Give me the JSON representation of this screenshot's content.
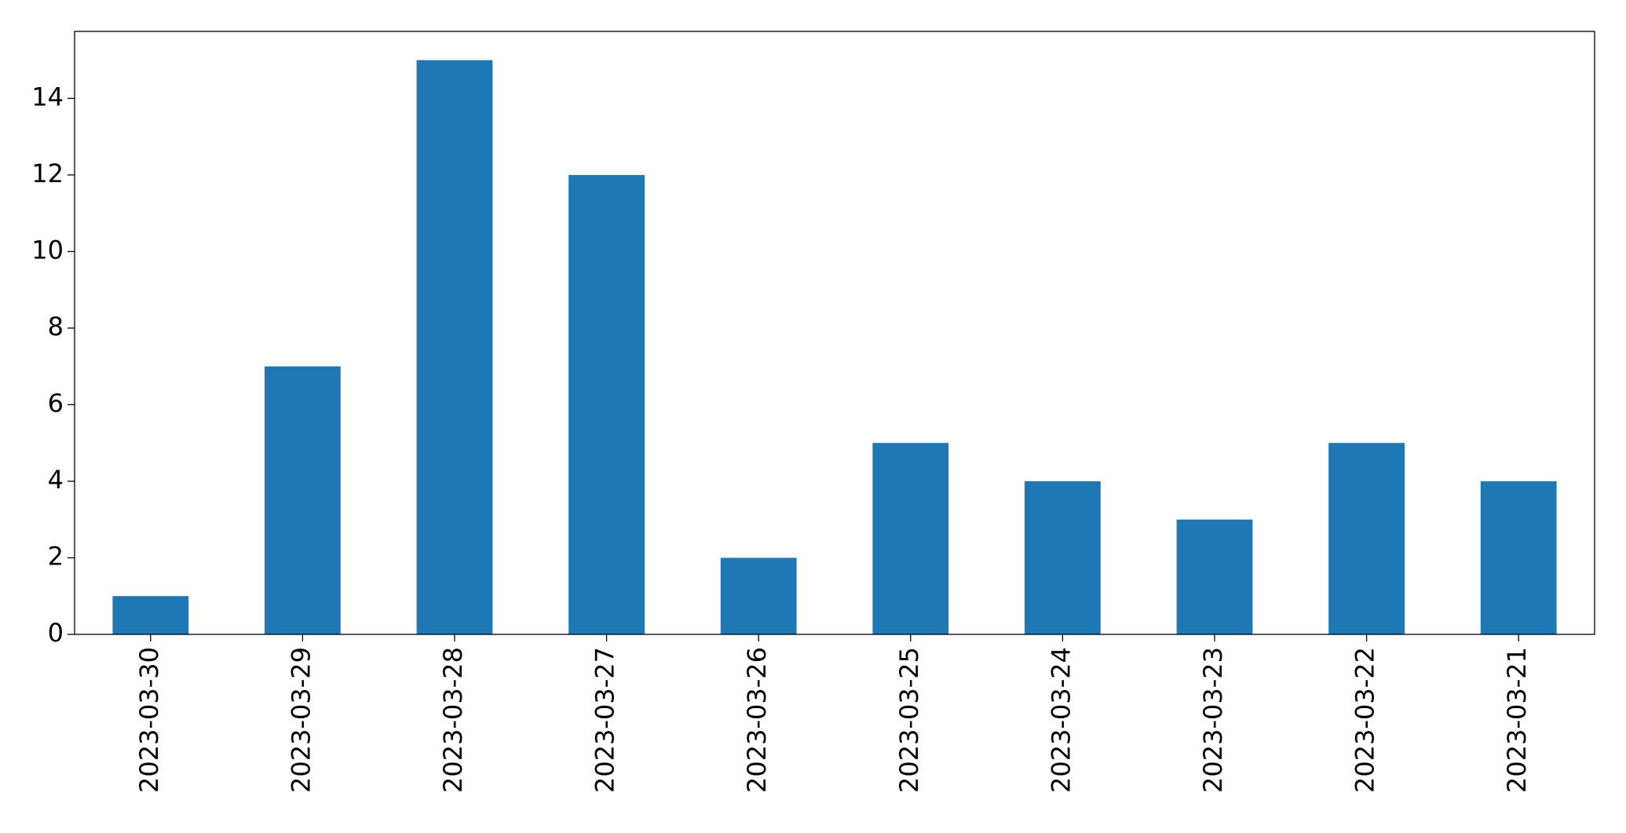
{
  "chart_data": {
    "type": "bar",
    "categories": [
      "2023-03-30",
      "2023-03-29",
      "2023-03-28",
      "2023-03-27",
      "2023-03-26",
      "2023-03-25",
      "2023-03-24",
      "2023-03-23",
      "2023-03-22",
      "2023-03-21"
    ],
    "values": [
      1,
      7,
      15,
      12,
      2,
      5,
      4,
      3,
      5,
      4
    ],
    "color": "#1f77b4",
    "ylim": [
      0,
      15.75
    ],
    "yticks": [
      0,
      2,
      4,
      6,
      8,
      10,
      12,
      14
    ],
    "grid": false
  }
}
